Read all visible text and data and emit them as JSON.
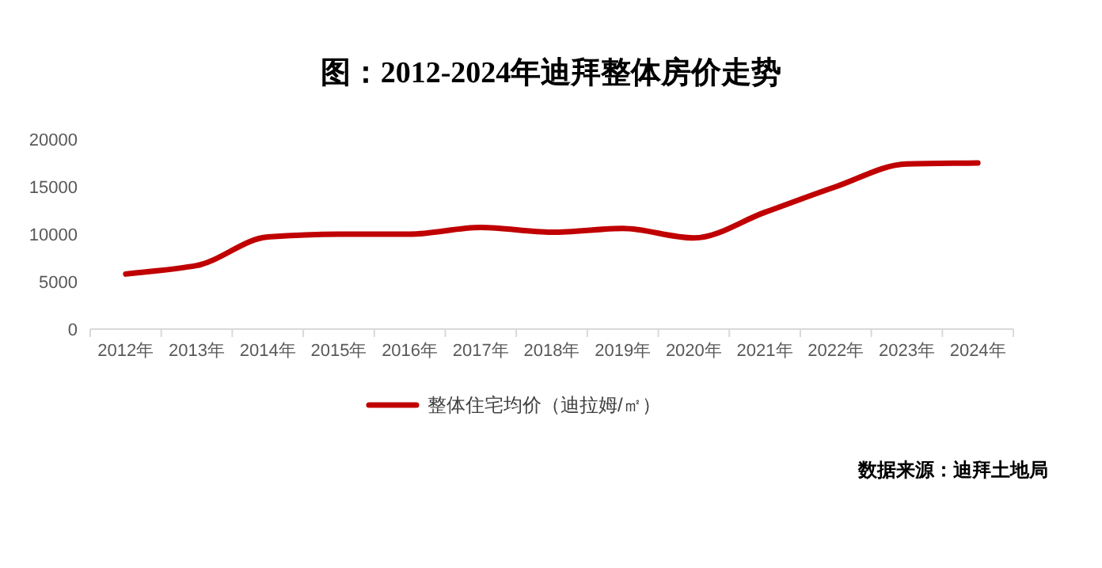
{
  "chart_data": {
    "type": "line",
    "title": "图：2012-2024年迪拜整体房价走势",
    "categories": [
      "2012年",
      "2013年",
      "2014年",
      "2015年",
      "2016年",
      "2017年",
      "2018年",
      "2019年",
      "2020年",
      "2021年",
      "2022年",
      "2023年",
      "2024年"
    ],
    "series": [
      {
        "name": "整体住宅均价（迪拉姆/㎡）",
        "color": "#c00000",
        "values": [
          5800,
          6700,
          9700,
          10000,
          10000,
          10700,
          10200,
          10600,
          9600,
          12300,
          15000,
          17400,
          17500
        ]
      }
    ],
    "ylim": [
      0,
      20000
    ],
    "yticks": [
      0,
      5000,
      10000,
      15000,
      20000
    ],
    "grid": false,
    "legend": "bottom",
    "marker": "none",
    "line_style": "solid",
    "annotations": [
      "数据来源：迪拜土地局"
    ]
  }
}
